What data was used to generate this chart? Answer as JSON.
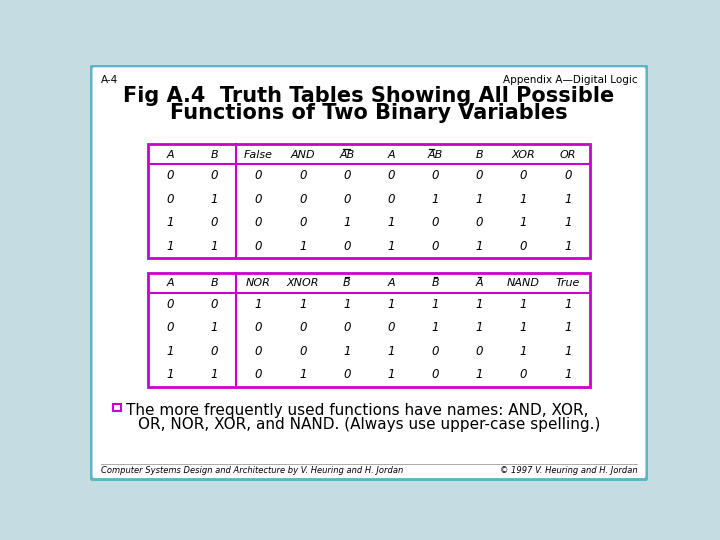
{
  "background_color": "#c5dde2",
  "outer_border_color": "#5ab5c5",
  "inner_bg_color": "#ffffff",
  "title_line1": "Fig A.4  Truth Tables Showing All Possible",
  "title_line2": "Functions of Two Binary Variables",
  "header_top_left": "A-4",
  "header_top_right": "Appendix A—Digital Logic",
  "footer_left": "Computer Systems Design and Architecture by V. Heuring and H. Jordan",
  "footer_right": "© 1997 V. Heuring and H. Jordan",
  "table_border_color": "#cc00cc",
  "bullet_color": "#cc00cc",
  "note_text_line1": "The more frequently used functions have names: AND, XOR,",
  "note_text_line2": "OR, NOR, XOR, and NAND. (Always use upper-case spelling.)",
  "table1_col_labels": [
    "A",
    "B",
    "False",
    "AND",
    "AB",
    "A",
    "AB",
    "B",
    "XOR",
    "OR"
  ],
  "table1_col_bar": [
    false,
    false,
    false,
    false,
    true,
    false,
    true,
    false,
    false,
    false
  ],
  "table1_col_barA": [
    false,
    false,
    false,
    false,
    false,
    false,
    true,
    false,
    false,
    false
  ],
  "table1_data": [
    [
      "0",
      "0",
      "0",
      "0",
      "0",
      "0",
      "0",
      "0",
      "0",
      "0"
    ],
    [
      "0",
      "1",
      "0",
      "0",
      "0",
      "0",
      "1",
      "1",
      "1",
      "1"
    ],
    [
      "1",
      "0",
      "0",
      "0",
      "1",
      "1",
      "0",
      "0",
      "1",
      "1"
    ],
    [
      "1",
      "1",
      "0",
      "1",
      "0",
      "1",
      "0",
      "1",
      "0",
      "1"
    ]
  ],
  "table2_col_labels": [
    "A",
    "B",
    "NOR",
    "XNOR",
    "B",
    "A",
    "B",
    "A",
    "NAND",
    "True"
  ],
  "table2_col_bar": [
    false,
    false,
    false,
    false,
    true,
    false,
    true,
    true,
    false,
    false
  ],
  "table2_data": [
    [
      "0",
      "0",
      "1",
      "1",
      "1",
      "1",
      "1",
      "1",
      "1",
      "1"
    ],
    [
      "0",
      "1",
      "0",
      "0",
      "0",
      "0",
      "1",
      "1",
      "1",
      "1"
    ],
    [
      "1",
      "0",
      "0",
      "0",
      "1",
      "1",
      "0",
      "0",
      "1",
      "1"
    ],
    [
      "1",
      "1",
      "0",
      "1",
      "0",
      "1",
      "0",
      "1",
      "0",
      "1"
    ]
  ]
}
